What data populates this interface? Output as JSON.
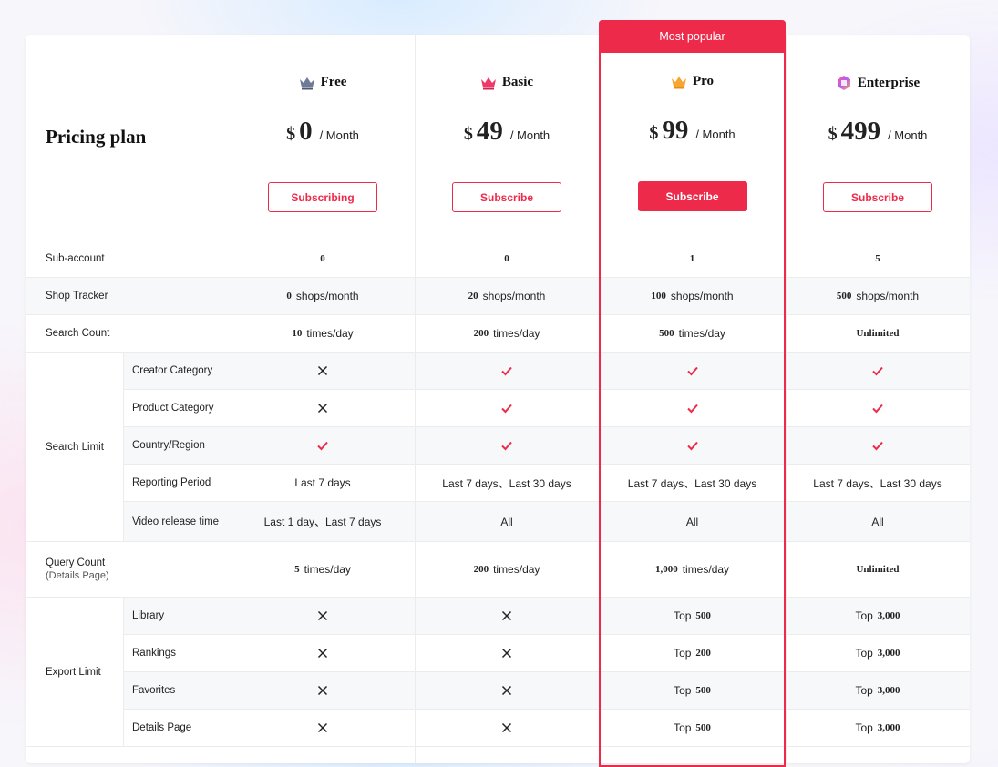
{
  "title": "Pricing plan",
  "most_popular": "Most popular",
  "plans": [
    {
      "name": "Free",
      "currency": "$",
      "amount": "0",
      "per": "/ Month",
      "button": "Subscribing"
    },
    {
      "name": "Basic",
      "currency": "$",
      "amount": "49",
      "per": "/ Month",
      "button": "Subscribe"
    },
    {
      "name": "Pro",
      "currency": "$",
      "amount": "99",
      "per": "/ Month",
      "button": "Subscribe"
    },
    {
      "name": "Enterprise",
      "currency": "$",
      "amount": "499",
      "per": "/ Month",
      "button": "Subscribe"
    }
  ],
  "labels": {
    "sub_account": "Sub-account",
    "shop_tracker": "Shop Tracker",
    "search_count": "Search Count",
    "search_limit": "Search Limit",
    "creator_category": "Creator Category",
    "product_category": "Product Category",
    "country_region": "Country/Region",
    "reporting_period": "Reporting Period",
    "video_release_time": "Video release time",
    "query_count": "Query Count",
    "query_count_sub": "(Details Page)",
    "export_limit": "Export Limit",
    "library": "Library",
    "rankings": "Rankings",
    "favorites": "Favorites",
    "details_page": "Details Page"
  },
  "units": {
    "shops_month": "shops/month",
    "times_day": "times/day",
    "top": "Top"
  },
  "values": {
    "sub_account": [
      "0",
      "0",
      "1",
      "5"
    ],
    "shop_tracker": [
      "0",
      "20",
      "100",
      "500"
    ],
    "search_count": [
      "10",
      "200",
      "500",
      "Unlimited"
    ],
    "reporting_period": [
      "Last 7 days",
      "Last 7 days、Last 30 days",
      "Last 7 days、Last 30 days",
      "Last 7 days、Last 30 days"
    ],
    "video_release_time": [
      "Last 1 day、Last 7 days",
      "All",
      "All",
      "All"
    ],
    "query_count": [
      "5",
      "200",
      "1,000",
      "Unlimited"
    ],
    "library": [
      "",
      "",
      "500",
      "3,000"
    ],
    "rankings": [
      "",
      "",
      "200",
      "3,000"
    ],
    "favorites": [
      "",
      "",
      "500",
      "3,000"
    ],
    "details_page": [
      "",
      "",
      "500",
      "3,000"
    ]
  },
  "colors": {
    "accent": "#ee2a4a"
  },
  "icons": {
    "check": "check-icon",
    "cross": "cross-icon",
    "crown": "crown-icon"
  }
}
